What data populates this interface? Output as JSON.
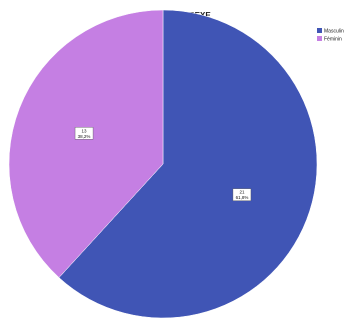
{
  "chart_data": {
    "type": "pie",
    "title": "SEXE",
    "slices": [
      {
        "name": "Masculin",
        "value": 61.8,
        "count": "21",
        "pct": "61,8%",
        "color": "#4055b5"
      },
      {
        "name": "Féminin",
        "value": 38.2,
        "count": "13",
        "pct": "38,2%",
        "color": "#c57fe3"
      }
    ],
    "legend_position": "top-right",
    "start_angle_deg": 0,
    "direction": "clockwise"
  }
}
